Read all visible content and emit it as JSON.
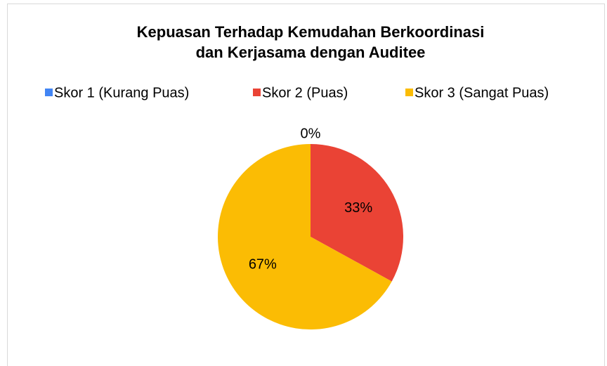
{
  "chart_data": {
    "type": "pie",
    "title": [
      "Kepuasan Terhadap Kemudahan Berkoordinasi",
      "dan Kerjasama dengan Auditee"
    ],
    "categories": [
      "Skor 1 (Kurang Puas)",
      "Skor 2 (Puas)",
      "Skor 3 (Sangat Puas)"
    ],
    "values": [
      0,
      33,
      67
    ],
    "value_labels": [
      "0%",
      "33%",
      "67%"
    ],
    "colors": [
      "#4285f4",
      "#ea4335",
      "#fbbc04"
    ],
    "legend": "top"
  }
}
